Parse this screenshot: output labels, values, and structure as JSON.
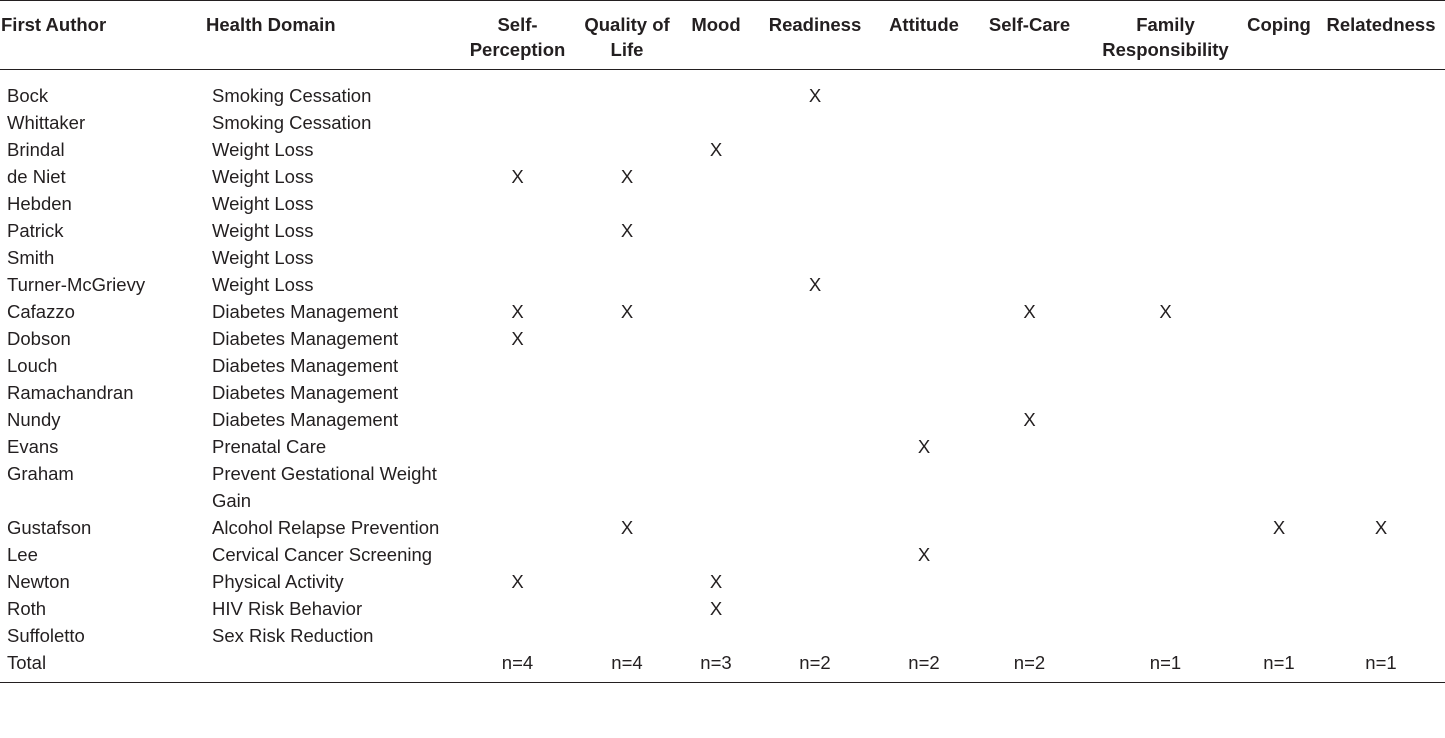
{
  "headers": {
    "author": "First Author",
    "domain": "Health Domain",
    "cols": [
      "Self-Perception",
      "Quality of Life",
      "Mood",
      "Readiness",
      "Attitude",
      "Self-Care",
      "Family Responsibility",
      "Coping",
      "Relatedness"
    ]
  },
  "rows": [
    {
      "author": "Bock",
      "domain": "Smoking Cessation",
      "marks": [
        "",
        "",
        "",
        "X",
        "",
        "",
        "",
        "",
        ""
      ]
    },
    {
      "author": "Whittaker",
      "domain": "Smoking Cessation",
      "marks": [
        "",
        "",
        "",
        "",
        "",
        "",
        "",
        "",
        ""
      ]
    },
    {
      "author": "Brindal",
      "domain": "Weight Loss",
      "marks": [
        "",
        "",
        "X",
        "",
        "",
        "",
        "",
        "",
        ""
      ]
    },
    {
      "author": "de Niet",
      "domain": "Weight Loss",
      "marks": [
        "X",
        "X",
        "",
        "",
        "",
        "",
        "",
        "",
        ""
      ]
    },
    {
      "author": "Hebden",
      "domain": "Weight Loss",
      "marks": [
        "",
        "",
        "",
        "",
        "",
        "",
        "",
        "",
        ""
      ]
    },
    {
      "author": "Patrick",
      "domain": "Weight Loss",
      "marks": [
        "",
        "X",
        "",
        "",
        "",
        "",
        "",
        "",
        ""
      ]
    },
    {
      "author": "Smith",
      "domain": "Weight Loss",
      "marks": [
        "",
        "",
        "",
        "",
        "",
        "",
        "",
        "",
        ""
      ]
    },
    {
      "author": "Turner-McGrievy",
      "domain": "Weight Loss",
      "marks": [
        "",
        "",
        "",
        "X",
        "",
        "",
        "",
        "",
        ""
      ]
    },
    {
      "author": "Cafazzo",
      "domain": "Diabetes Management",
      "marks": [
        "X",
        "X",
        "",
        "",
        "",
        "X",
        "X",
        "",
        ""
      ]
    },
    {
      "author": "Dobson",
      "domain": "Diabetes Management",
      "marks": [
        "X",
        "",
        "",
        "",
        "",
        "",
        "",
        "",
        ""
      ]
    },
    {
      "author": "Louch",
      "domain": "Diabetes Management",
      "marks": [
        "",
        "",
        "",
        "",
        "",
        "",
        "",
        "",
        ""
      ]
    },
    {
      "author": "Ramachandran",
      "domain": "Diabetes Management",
      "marks": [
        "",
        "",
        "",
        "",
        "",
        "",
        "",
        "",
        ""
      ]
    },
    {
      "author": "Nundy",
      "domain": "Diabetes Management",
      "marks": [
        "",
        "",
        "",
        "",
        "",
        "X",
        "",
        "",
        ""
      ]
    },
    {
      "author": "Evans",
      "domain": "Prenatal Care",
      "marks": [
        "",
        "",
        "",
        "",
        "X",
        "",
        "",
        "",
        ""
      ]
    },
    {
      "author": "Graham",
      "domain": "Prevent Gestational Weight Gain",
      "marks": [
        "",
        "",
        "",
        "",
        "",
        "",
        "",
        "",
        ""
      ]
    },
    {
      "author": "Gustafson",
      "domain": "Alcohol Relapse Prevention",
      "marks": [
        "",
        "X",
        "",
        "",
        "",
        "",
        "",
        "X",
        "X"
      ]
    },
    {
      "author": "Lee",
      "domain": "Cervical Cancer Screening",
      "marks": [
        "",
        "",
        "",
        "",
        "X",
        "",
        "",
        "",
        ""
      ]
    },
    {
      "author": "Newton",
      "domain": "Physical Activity",
      "marks": [
        "X",
        "",
        "X",
        "",
        "",
        "",
        "",
        "",
        ""
      ]
    },
    {
      "author": "Roth",
      "domain": "HIV Risk Behavior",
      "marks": [
        "",
        "",
        "X",
        "",
        "",
        "",
        "",
        "",
        ""
      ]
    },
    {
      "author": "Suffoletto",
      "domain": "Sex Risk Reduction",
      "marks": [
        "",
        "",
        "",
        "",
        "",
        "",
        "",
        "",
        ""
      ]
    }
  ],
  "total": {
    "label": "Total",
    "values": [
      "n=4",
      "n=4",
      "n=3",
      "n=2",
      "n=2",
      "n=2",
      "n=1",
      "n=1",
      "n=1"
    ]
  }
}
